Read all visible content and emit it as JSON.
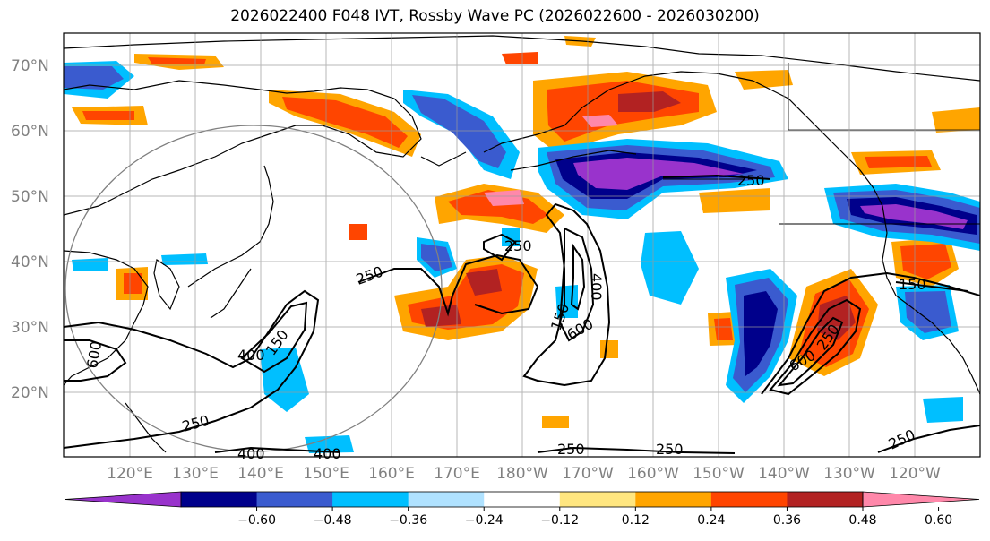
{
  "title": "2026022400 F048 IVT, Rossby Wave PC (2026022600 - 2026030200)",
  "map": {
    "lat_labels": [
      "70°N",
      "60°N",
      "50°N",
      "40°N",
      "30°N",
      "20°N"
    ],
    "lon_labels": [
      "120°E",
      "130°E",
      "140°E",
      "150°E",
      "160°E",
      "170°E",
      "180°W",
      "170°W",
      "160°W",
      "150°W",
      "140°W",
      "130°W",
      "120°W"
    ],
    "contour_labels": [
      "250",
      "250",
      "250",
      "250",
      "250",
      "250",
      "250",
      "400",
      "400",
      "400",
      "400",
      "600",
      "600",
      "600",
      "150",
      "150",
      "150",
      "250"
    ]
  },
  "colorbar": {
    "ticks": [
      "−0.60",
      "−0.48",
      "−0.36",
      "−0.24",
      "−0.12",
      "0.12",
      "0.24",
      "0.36",
      "0.48",
      "0.60"
    ],
    "colors": [
      "#9933cc",
      "#00008b",
      "#3a5bcf",
      "#00bfff",
      "#b0e2ff",
      "#ffffff",
      "#ffe680",
      "#ffa500",
      "#ff4500",
      "#b22222",
      "#ff88aa"
    ]
  }
}
